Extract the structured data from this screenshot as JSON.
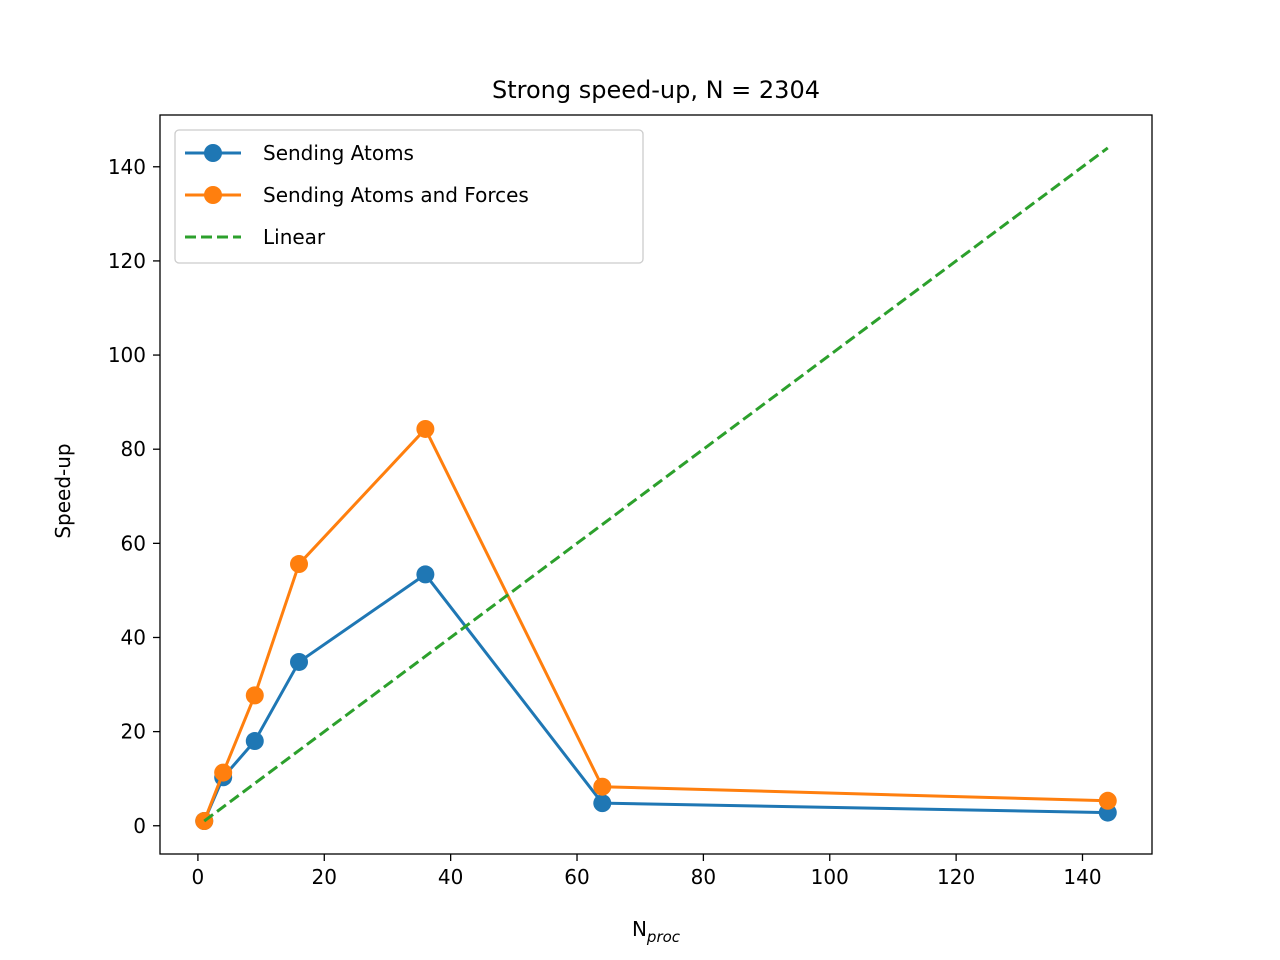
{
  "chart_data": {
    "type": "line",
    "title": "Strong speed-up, N = 2304",
    "xlabel_main": "N",
    "xlabel_sub": "proc",
    "ylabel": "Speed-up",
    "xlim": [
      -6,
      151
    ],
    "ylim": [
      -6,
      151
    ],
    "xticks": [
      0,
      20,
      40,
      60,
      80,
      100,
      120,
      140
    ],
    "yticks": [
      0,
      20,
      40,
      60,
      80,
      100,
      120,
      140
    ],
    "grid": false,
    "legend_position": "top-left",
    "series": [
      {
        "name": "Sending Atoms",
        "color": "#1f77b4",
        "style": "solid",
        "marker": "circle",
        "x": [
          1,
          4,
          9,
          16,
          36,
          64,
          144
        ],
        "y": [
          1.0,
          10.3,
          18.0,
          34.8,
          53.4,
          4.8,
          2.8
        ]
      },
      {
        "name": "Sending Atoms and Forces",
        "color": "#ff7f0e",
        "style": "solid",
        "marker": "circle",
        "x": [
          1,
          4,
          9,
          16,
          36,
          64,
          144
        ],
        "y": [
          1.0,
          11.3,
          27.7,
          55.6,
          84.3,
          8.3,
          5.3
        ]
      },
      {
        "name": "Linear",
        "color": "#2ca02c",
        "style": "dashed",
        "marker": "none",
        "x": [
          1,
          144
        ],
        "y": [
          1,
          144
        ]
      }
    ]
  }
}
